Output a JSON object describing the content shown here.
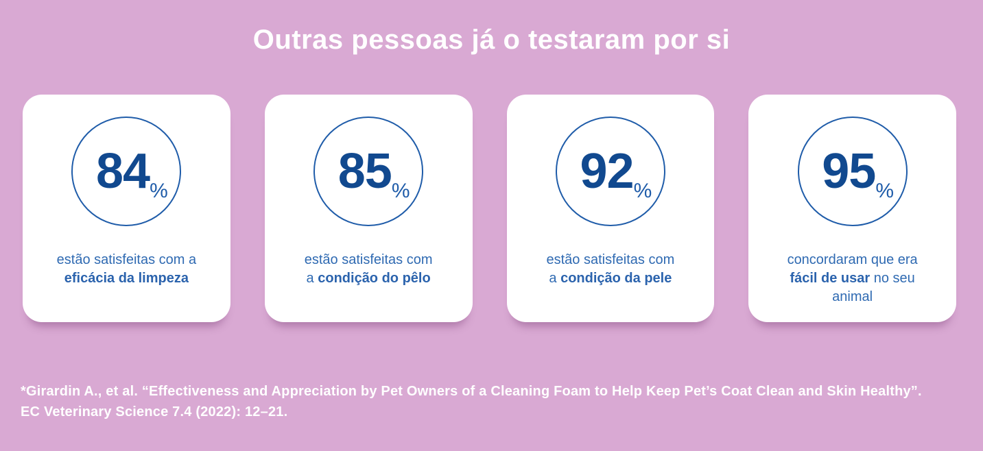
{
  "page": {
    "title": "Outras pessoas já o testaram por si",
    "background_color": "#d9a9d3"
  },
  "colors": {
    "title_text": "#ffffff",
    "card_background": "#ffffff",
    "stat_number": "#11498f",
    "stat_circle_stroke": "#1f5ca9",
    "caption_text": "#2f6ab2",
    "footnote_text": "#ffffff"
  },
  "stats": [
    {
      "value": "84",
      "unit": "%",
      "caption_line1": "estão satisfeitas com a",
      "caption_bold": "eficácia da limpeza"
    },
    {
      "value": "85",
      "unit": "%",
      "caption_line1": "estão satisfeitas com",
      "caption_prefix": "a ",
      "caption_bold": "condição do pêlo"
    },
    {
      "value": "92",
      "unit": "%",
      "caption_line1": "estão satisfeitas com",
      "caption_prefix": "a ",
      "caption_bold": "condição da pele"
    },
    {
      "value": "95",
      "unit": "%",
      "caption_line1": "concordaram que era",
      "caption_bold": "fácil de usar",
      "caption_after": " no seu",
      "caption_line3": "animal"
    }
  ],
  "footnote": {
    "line1": "*Girardin A., et al. “Effectiveness and Appreciation by Pet Owners of a Cleaning Foam to Help Keep Pet’s Coat Clean and Skin Healthy”.",
    "line2": "EC Veterinary Science 7.4 (2022): 12–21."
  }
}
